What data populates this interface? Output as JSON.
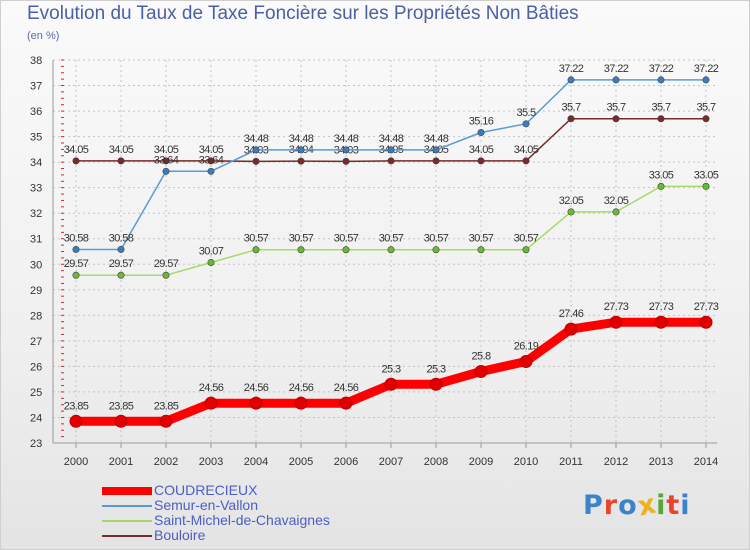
{
  "title": "Evolution du Taux de Taxe Foncière sur les Propriétés Non Bâties",
  "subtitle": "(en %)",
  "logo": {
    "text": "Proxiti",
    "colors": [
      "#3d83c9",
      "#e8452c",
      "#3d83c9",
      "#f0b21a",
      "#52a83a",
      "#e8452c",
      "#3d83c9"
    ]
  },
  "chart_data": {
    "type": "line",
    "title": "Evolution du Taux de Taxe Foncière sur les Propriétés Non Bâties",
    "ylabel": "(en %)",
    "xlabel": "",
    "ylim": [
      23,
      38
    ],
    "yticks": [
      "23",
      "24",
      "25",
      "26",
      "27",
      "28",
      "29",
      "30",
      "31",
      "32",
      "33",
      "34",
      "35",
      "36",
      "37",
      "38"
    ],
    "categories": [
      "2000",
      "2001",
      "2002",
      "2003",
      "2004",
      "2005",
      "2006",
      "2007",
      "2008",
      "2009",
      "2010",
      "2011",
      "2012",
      "2013",
      "2014"
    ],
    "grid": true,
    "legend": "bottom-left",
    "series": [
      {
        "name": "Bouloire",
        "color": "#7a2a2a",
        "point_color": "#7a2a2a",
        "values": [
          34.05,
          34.05,
          34.05,
          34.05,
          34.03,
          34.04,
          34.03,
          34.05,
          34.05,
          34.05,
          34.05,
          35.7,
          35.7,
          35.7,
          35.7
        ],
        "labels": [
          "34.05",
          "34.05",
          "34.05",
          "34.05",
          "34.03",
          "34.04",
          "34.03",
          "34.05",
          "34.05",
          "34.05",
          "34.05",
          "35.7",
          "35.7",
          "35.7",
          "35.7"
        ]
      },
      {
        "name": "Semur-en-Vallon",
        "color": "#5b9bd5",
        "point_color": "#3a7dbf",
        "values": [
          30.58,
          30.58,
          33.64,
          33.64,
          34.48,
          34.48,
          34.48,
          34.48,
          34.48,
          35.16,
          35.5,
          37.22,
          37.22,
          37.22,
          37.22
        ],
        "labels": [
          "30.58",
          "30.58",
          "33.64",
          "33.64",
          "34.48",
          "34.48",
          "34.48",
          "34.48",
          "34.48",
          "35.16",
          "35.5",
          "37.22",
          "37.22",
          "37.22",
          "37.22"
        ]
      },
      {
        "name": "Saint-Michel-de-Chavaignes",
        "color": "#a6d96a",
        "point_color": "#66bb33",
        "values": [
          29.57,
          29.57,
          29.57,
          30.07,
          30.57,
          30.57,
          30.57,
          30.57,
          30.57,
          30.57,
          30.57,
          32.05,
          32.05,
          33.05,
          33.05
        ],
        "labels": [
          "29.57",
          "29.57",
          "29.57",
          "30.07",
          "30.57",
          "30.57",
          "30.57",
          "30.57",
          "30.57",
          "30.57",
          "30.57",
          "32.05",
          "32.05",
          "33.05",
          "33.05"
        ]
      },
      {
        "name": "COUDRECIEUX",
        "color": "#ff0000",
        "point_color": "#e00000",
        "values": [
          23.85,
          23.85,
          23.85,
          24.56,
          24.56,
          24.56,
          24.56,
          25.3,
          25.3,
          25.8,
          26.19,
          27.46,
          27.73,
          27.73,
          27.73
        ],
        "labels": [
          "23.85",
          "23.85",
          "23.85",
          "24.56",
          "24.56",
          "24.56",
          "24.56",
          "25.3",
          "25.3",
          "25.8",
          "26.19",
          "27.46",
          "27.73",
          "27.73",
          "27.73"
        ]
      }
    ],
    "legend_order": [
      "COUDRECIEUX",
      "Semur-en-Vallon",
      "Saint-Michel-de-Chavaignes",
      "Bouloire"
    ]
  }
}
